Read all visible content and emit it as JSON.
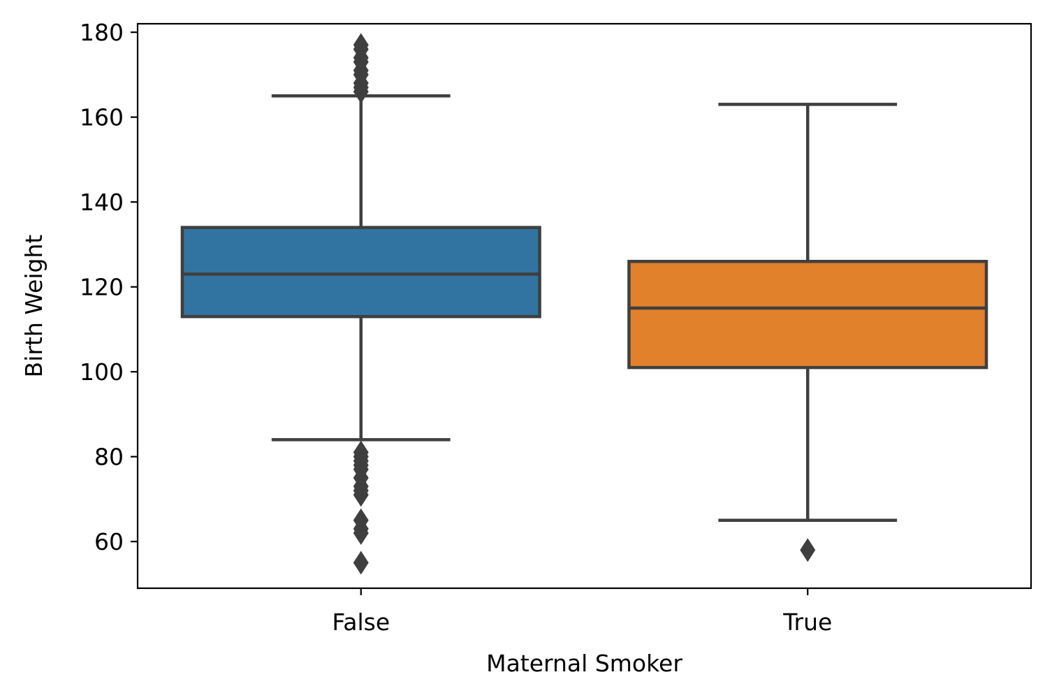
{
  "chart_data": {
    "type": "box",
    "title": "",
    "xlabel": "Maternal Smoker",
    "ylabel": "Birth Weight",
    "ylim": [
      49,
      182
    ],
    "yticks": [
      60,
      80,
      100,
      120,
      140,
      160,
      180
    ],
    "grid": false,
    "categories": [
      "False",
      "True"
    ],
    "boxes": [
      {
        "category": "False",
        "color": "#3274a1",
        "whisker_low": 84,
        "q1": 113,
        "median": 123,
        "q3": 134,
        "whisker_high": 165,
        "outliers": [
          55,
          62,
          63,
          65,
          71,
          72,
          73,
          75,
          77,
          78,
          79,
          80,
          81,
          166,
          167,
          168,
          170,
          171,
          173,
          174,
          176,
          177
        ]
      },
      {
        "category": "True",
        "color": "#e1812c",
        "whisker_low": 65,
        "q1": 101,
        "median": 115,
        "q3": 126,
        "whisker_high": 163,
        "outliers": [
          58
        ]
      }
    ],
    "line_color": "#3f3f3f"
  }
}
